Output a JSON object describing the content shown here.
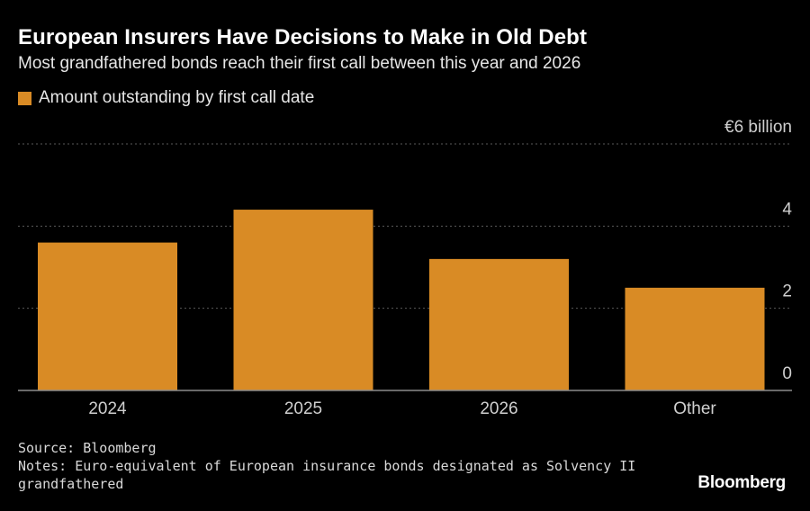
{
  "header": {
    "title": "European Insurers Have Decisions to Make in Old Debt",
    "subtitle": "Most grandfathered bonds reach their first call between this year and 2026"
  },
  "legend": {
    "label": "Amount outstanding by first call date"
  },
  "colors": {
    "background": "#000000",
    "bar": "#d98b25",
    "grid": "#5a5a5a",
    "axis": "#8c8c8c",
    "text": "#ffffff",
    "muted": "#cfcfcf"
  },
  "chart_data": {
    "type": "bar",
    "title": "European Insurers Have Decisions to Make in Old Debt",
    "subtitle": "Most grandfathered bonds reach their first call between this year and 2026",
    "categories": [
      "2024",
      "2025",
      "2026",
      "Other"
    ],
    "series": [
      {
        "name": "Amount outstanding by first call date",
        "values": [
          3.6,
          4.4,
          3.2,
          2.5
        ]
      }
    ],
    "ylim": [
      0,
      6
    ],
    "yticks": [
      {
        "value": 0,
        "label": "0"
      },
      {
        "value": 2,
        "label": "2"
      },
      {
        "value": 4,
        "label": "4"
      },
      {
        "value": 6,
        "label": "€6 billion"
      }
    ],
    "grid": true,
    "legend_position": "top-left",
    "xlabel": "",
    "ylabel": ""
  },
  "footer": {
    "source": "Source: Bloomberg",
    "notes_line1": "Notes: Euro-equivalent of European insurance bonds designated as Solvency II",
    "notes_line2": "grandfathered",
    "brand": "Bloomberg"
  }
}
